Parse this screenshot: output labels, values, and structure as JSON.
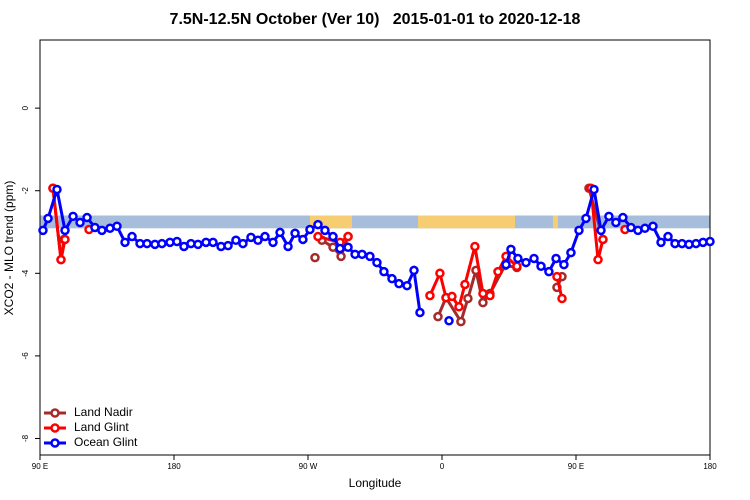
{
  "chart_data": {
    "type": "line",
    "title": "7.5N-12.5N October (Ver 10)   2015-01-01 to 2020-12-18",
    "x_label": "Longitude",
    "y_label": "XCO2 - MLO trend (ppm)",
    "xlim": [
      90,
      540
    ],
    "ylim": [
      -8.4,
      1.65
    ],
    "xticks": [
      {
        "value": 90,
        "label": "90 E"
      },
      180,
      {
        "value": 270,
        "label": "90 W"
      },
      {
        "value": 360,
        "label": "0"
      },
      {
        "value": 450,
        "label": "90 E"
      },
      {
        "value": 540,
        "label": "180"
      }
    ],
    "yticks": [
      -8,
      -6,
      -4,
      -2,
      0
    ],
    "legend": "bottom-left",
    "band": {
      "ylim": [
        -2.91,
        -2.6
      ],
      "color": "#a6bddb",
      "land_color": "#f7cd72",
      "land_x": [
        [
          271.3,
          299.5
        ],
        [
          343.9,
          409
        ],
        [
          434.5,
          437.9
        ]
      ]
    },
    "series": [
      {
        "name": "Land Nadir",
        "color": "#a52a2a",
        "x": [
          98.7,
          104.1,
          106.1,
          null,
          274.7,
          null,
          279.4,
          286.8,
          292.2,
          296.9,
          null,
          357.3,
          362.7,
          372.7,
          377.4,
          382.8,
          387.5,
          392.2,
          402.3,
          410.3,
          null,
          437.2,
          440.6,
          null,
          458.7,
          468.1
        ],
        "values": [
          -1.94,
          -3.67,
          -3.18,
          null,
          -3.62,
          null,
          -3.2,
          -3.37,
          -3.59,
          -3.11,
          null,
          -5.05,
          -4.59,
          -5.17,
          -4.61,
          -3.93,
          -4.71,
          -4.49,
          -3.81,
          -3.86,
          null,
          -4.34,
          -4.08,
          null,
          -1.94,
          -3.18
        ]
      },
      {
        "name": "Land Glint",
        "color": "#ff0000",
        "x": [
          98.7,
          104.1,
          106.8,
          null,
          122.9,
          null,
          276.7,
          291.5,
          296.9,
          null,
          351.9,
          358.6,
          362.7,
          366.7,
          371.4,
          375.4,
          382.1,
          387.5,
          392.2,
          397.6,
          403,
          410.3,
          null,
          437.2,
          440.6,
          null,
          460,
          464.8,
          468.1,
          null,
          482.9
        ],
        "values": [
          -1.94,
          -3.67,
          -3.18,
          null,
          -2.94,
          null,
          -3.11,
          -3.25,
          -3.11,
          null,
          -4.54,
          -4.0,
          -4.59,
          -4.56,
          -4.81,
          -4.27,
          -3.35,
          -4.49,
          -4.54,
          -3.96,
          -3.59,
          -3.83,
          null,
          -4.08,
          -4.61,
          null,
          -1.94,
          -3.67,
          -3.18,
          null,
          -2.94
        ]
      },
      {
        "name": "Ocean Glint",
        "color": "#0000ff",
        "x": [
          92,
          95.4,
          101.4,
          106.8,
          112.2,
          116.9,
          121.6,
          126.9,
          131.6,
          137,
          141.7,
          147.1,
          151.8,
          157.2,
          161.9,
          167.2,
          171.9,
          177.3,
          182,
          186.7,
          191.4,
          196.1,
          201.5,
          206.2,
          211.6,
          216.3,
          221.6,
          226.3,
          231.7,
          236.4,
          241.1,
          246.5,
          251.2,
          256.6,
          261.3,
          266.6,
          271.3,
          276.7,
          281.4,
          286.8,
          291.5,
          296.9,
          301.6,
          306.3,
          311.6,
          316.3,
          321,
          326.4,
          331.1,
          336.5,
          341.2,
          345.2,
          null,
          364.7,
          null,
          403,
          406.3,
          411,
          416.4,
          421.8,
          426.5,
          431.8,
          436.6,
          441.9,
          446.6,
          452,
          456.7,
          462.1,
          466.8,
          472.1,
          476.8,
          481.5,
          486.9,
          491.6,
          496.3,
          501.7,
          507.1,
          511.8,
          516.5,
          521.2,
          525.9,
          530.6,
          535.3,
          540
        ],
        "values": [
          -2.96,
          -2.67,
          -1.97,
          -2.96,
          -2.62,
          -2.77,
          -2.65,
          -2.89,
          -2.96,
          -2.91,
          -2.86,
          -3.25,
          -3.11,
          -3.28,
          -3.28,
          -3.3,
          -3.28,
          -3.25,
          -3.23,
          -3.35,
          -3.28,
          -3.3,
          -3.25,
          -3.25,
          -3.35,
          -3.33,
          -3.2,
          -3.28,
          -3.13,
          -3.2,
          -3.11,
          -3.25,
          -3.01,
          -3.35,
          -3.03,
          -3.18,
          -2.94,
          -2.82,
          -2.96,
          -3.11,
          -3.4,
          -3.37,
          -3.54,
          -3.54,
          -3.59,
          -3.74,
          -3.96,
          -4.13,
          -4.25,
          -4.3,
          -3.93,
          -4.95,
          null,
          -5.15,
          null,
          -3.79,
          -3.42,
          -3.64,
          -3.74,
          -3.64,
          -3.83,
          -3.96,
          -3.64,
          -3.79,
          -3.5,
          -2.96,
          -2.67,
          -1.97,
          -2.96,
          -2.62,
          -2.77,
          -2.65,
          -2.89,
          -2.96,
          -2.91,
          -2.86,
          -3.25,
          -3.11,
          -3.28,
          -3.28,
          -3.3,
          -3.28,
          -3.25,
          -3.23
        ]
      }
    ]
  }
}
